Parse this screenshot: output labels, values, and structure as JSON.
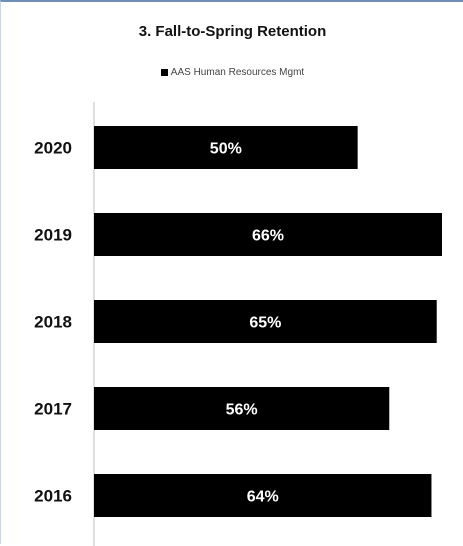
{
  "chart_data": {
    "type": "bar",
    "orientation": "horizontal",
    "title": "3. Fall-to-Spring Retention",
    "categories": [
      "2020",
      "2019",
      "2018",
      "2017",
      "2016"
    ],
    "series": [
      {
        "name": "AAS Human Resources Mgmt",
        "values": [
          50,
          66,
          65,
          56,
          64
        ],
        "labels": [
          "50%",
          "66%",
          "65%",
          "56%",
          "64%"
        ],
        "color": "#000000"
      }
    ],
    "value_unit": "%",
    "xlabel": "",
    "ylabel": "",
    "xlim": [
      0,
      66
    ],
    "grid": false,
    "legend_position": "top-center"
  }
}
